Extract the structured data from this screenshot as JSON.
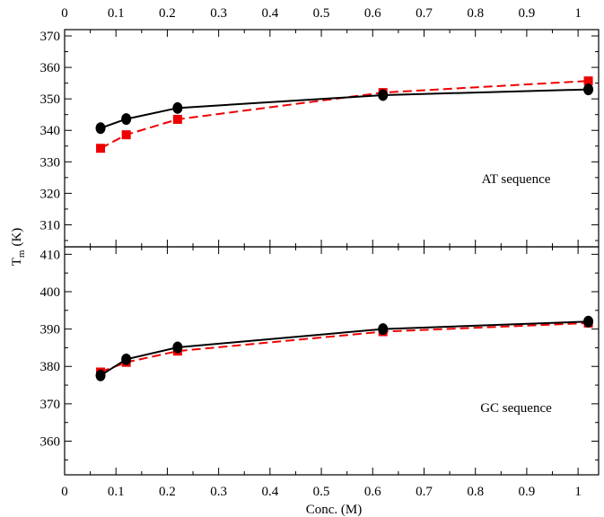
{
  "chart_data": [
    {
      "type": "line",
      "annotation": "AT sequence",
      "x": [
        0.07,
        0.12,
        0.22,
        0.62,
        1.02
      ],
      "xlim": [
        0,
        1.04
      ],
      "ylim": [
        303,
        372
      ],
      "yticks": [
        310,
        320,
        330,
        340,
        350,
        360,
        370
      ],
      "xticks_top": [
        "0",
        "0.1",
        "0.2",
        "0.3",
        "0.4",
        "0.5",
        "0.6",
        "0.7",
        "0.8",
        "0.9",
        "1"
      ],
      "series": [
        {
          "marker": "circle",
          "line": "solid",
          "color": "#000000",
          "values": [
            340.7,
            343.6,
            347.1,
            351.2,
            353.0
          ]
        },
        {
          "marker": "square",
          "line": "dashed",
          "color": "#ee0000",
          "values": [
            334.3,
            338.6,
            343.5,
            352.0,
            355.7
          ]
        }
      ]
    },
    {
      "type": "line",
      "annotation": "GC sequence",
      "x": [
        0.07,
        0.12,
        0.22,
        0.62,
        1.02
      ],
      "xlim": [
        0,
        1.04
      ],
      "ylim": [
        351,
        412
      ],
      "yticks": [
        360,
        370,
        380,
        390,
        400,
        410
      ],
      "xticks_bottom": [
        "0",
        "0.1",
        "0.2",
        "0.3",
        "0.4",
        "0.5",
        "0.6",
        "0.7",
        "0.8",
        "0.9",
        "1"
      ],
      "series": [
        {
          "marker": "circle",
          "line": "solid",
          "color": "#000000",
          "values": [
            377.6,
            381.9,
            385.1,
            390.0,
            392.0
          ]
        },
        {
          "marker": "square",
          "line": "dashed",
          "color": "#ee0000",
          "values": [
            378.5,
            381.1,
            384.1,
            389.3,
            391.6
          ]
        }
      ]
    }
  ],
  "axes": {
    "xlabel": "Conc. (M)",
    "ylabel_main": "T",
    "ylabel_sub": "m",
    "ylabel_unit": "(K)"
  }
}
